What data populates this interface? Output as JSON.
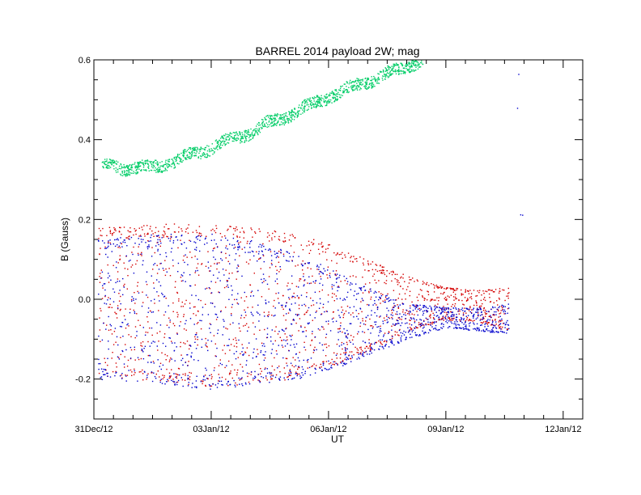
{
  "chart_data": {
    "type": "scatter",
    "title": "BARREL 2014 payload 2W; mag",
    "xlabel": "UT",
    "ylabel": "B (Gauss)",
    "xlim_days": [
      0,
      12.5
    ],
    "ylim": [
      -0.3,
      0.6
    ],
    "x_ticks": [
      {
        "day": 0,
        "label": "31Dec/12"
      },
      {
        "day": 3,
        "label": "03Jan/12"
      },
      {
        "day": 6,
        "label": "06Jan/12"
      },
      {
        "day": 9,
        "label": "09Jan/12"
      },
      {
        "day": 12,
        "label": "12Jan/12"
      }
    ],
    "y_ticks": [
      {
        "value": -0.2,
        "label": "-0.2"
      },
      {
        "value": 0.0,
        "label": "0.0"
      },
      {
        "value": 0.2,
        "label": "0.2"
      },
      {
        "value": 0.4,
        "label": "0.4"
      },
      {
        "value": 0.6,
        "label": "0.6"
      }
    ],
    "series": [
      {
        "color": "#00cc66",
        "points": [
          [
            0.2,
            0.34
          ],
          [
            0.5,
            0.335
          ],
          [
            0.8,
            0.33
          ],
          [
            1.2,
            0.33
          ],
          [
            1.6,
            0.335
          ],
          [
            2.0,
            0.345
          ],
          [
            2.4,
            0.36
          ],
          [
            2.8,
            0.375
          ],
          [
            3.2,
            0.39
          ],
          [
            3.6,
            0.405
          ],
          [
            4.0,
            0.42
          ],
          [
            4.4,
            0.44
          ],
          [
            4.8,
            0.455
          ],
          [
            5.2,
            0.475
          ],
          [
            5.6,
            0.49
          ],
          [
            6.0,
            0.51
          ],
          [
            6.4,
            0.525
          ],
          [
            6.8,
            0.54
          ],
          [
            7.2,
            0.555
          ],
          [
            7.6,
            0.57
          ],
          [
            8.0,
            0.585
          ],
          [
            8.2,
            0.595
          ],
          [
            8.4,
            0.6
          ]
        ]
      },
      {
        "color": "#d40000",
        "envelope_upper": [
          [
            0.1,
            0.18
          ],
          [
            1.0,
            0.185
          ],
          [
            2.0,
            0.19
          ],
          [
            3.0,
            0.19
          ],
          [
            4.0,
            0.185
          ],
          [
            5.0,
            0.17
          ],
          [
            6.0,
            0.14
          ],
          [
            7.0,
            0.1
          ],
          [
            8.0,
            0.06
          ],
          [
            9.0,
            0.03
          ],
          [
            10.0,
            0.025
          ],
          [
            10.6,
            0.03
          ]
        ],
        "envelope_lower": [
          [
            0.1,
            -0.19
          ],
          [
            1.0,
            -0.2
          ],
          [
            2.0,
            -0.21
          ],
          [
            3.0,
            -0.22
          ],
          [
            4.0,
            -0.21
          ],
          [
            5.0,
            -0.2
          ],
          [
            6.0,
            -0.17
          ],
          [
            7.0,
            -0.13
          ],
          [
            8.0,
            -0.08
          ],
          [
            9.0,
            -0.05
          ],
          [
            10.0,
            -0.06
          ],
          [
            10.6,
            -0.08
          ]
        ]
      },
      {
        "color": "#0000cc",
        "envelope_upper": [
          [
            0.1,
            0.15
          ],
          [
            1.0,
            0.16
          ],
          [
            2.0,
            0.165
          ],
          [
            3.0,
            0.165
          ],
          [
            4.0,
            0.15
          ],
          [
            5.0,
            0.12
          ],
          [
            6.0,
            0.08
          ],
          [
            7.0,
            0.03
          ],
          [
            8.0,
            -0.01
          ],
          [
            9.0,
            -0.02
          ],
          [
            10.0,
            -0.02
          ],
          [
            10.6,
            -0.01
          ]
        ],
        "envelope_lower": [
          [
            0.1,
            -0.2
          ],
          [
            1.0,
            -0.205
          ],
          [
            2.0,
            -0.215
          ],
          [
            3.0,
            -0.225
          ],
          [
            4.0,
            -0.215
          ],
          [
            5.0,
            -0.205
          ],
          [
            6.0,
            -0.18
          ],
          [
            7.0,
            -0.14
          ],
          [
            8.0,
            -0.1
          ],
          [
            9.0,
            -0.07
          ],
          [
            10.0,
            -0.08
          ],
          [
            10.6,
            -0.085
          ]
        ]
      },
      {
        "color": "#0000cc",
        "points": [
          [
            10.9,
            0.213
          ],
          [
            10.95,
            0.212
          ],
          [
            10.85,
            0.565
          ],
          [
            10.82,
            0.48
          ]
        ]
      }
    ]
  }
}
